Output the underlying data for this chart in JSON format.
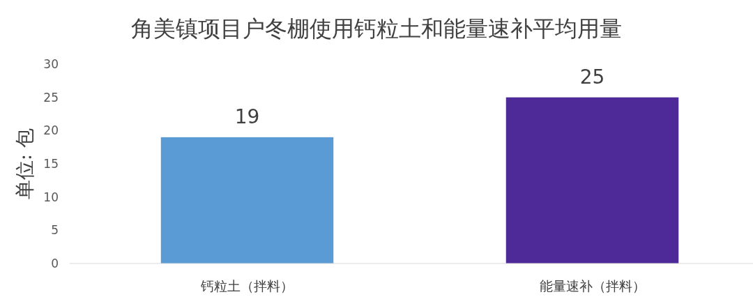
{
  "chart_data": {
    "type": "bar",
    "title": "角美镇项目户冬棚使用钙粒土和能量速补平均用量",
    "ylabel": "单位: 包",
    "categories": [
      "钙粒土（拌料）",
      "能量速补（拌料）"
    ],
    "values": [
      19,
      25
    ],
    "colors": [
      "#5b9bd5",
      "#4e2a98"
    ],
    "ylim": [
      0,
      30
    ],
    "yticks": [
      0,
      5,
      10,
      15,
      20,
      25,
      30
    ],
    "grid": false,
    "data_labels": true
  }
}
